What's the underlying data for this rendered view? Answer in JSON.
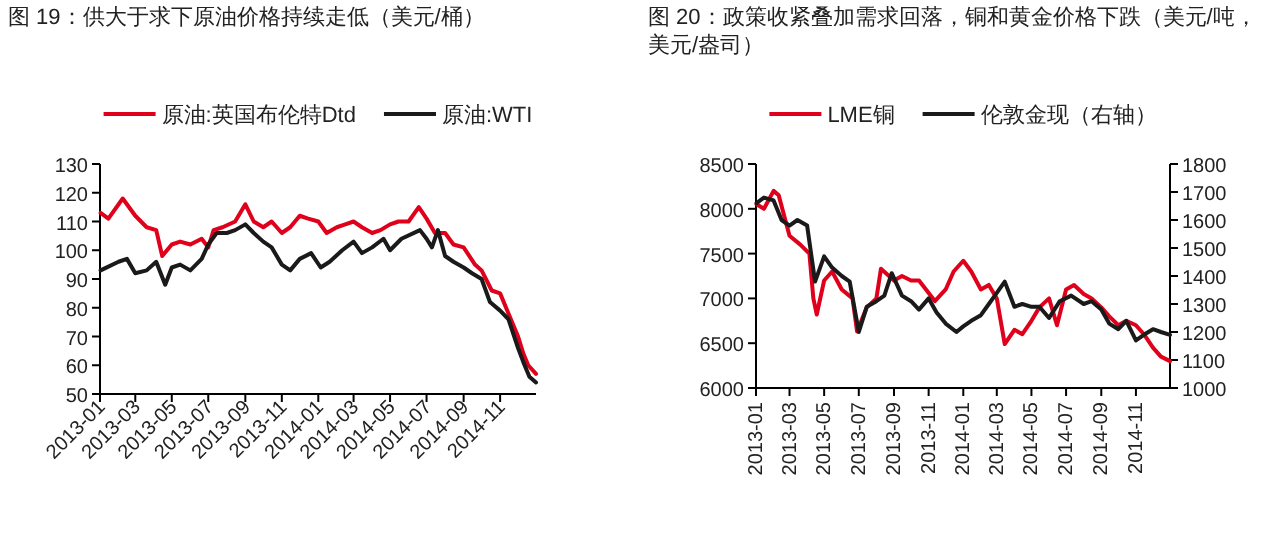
{
  "chart_data": [
    {
      "type": "line",
      "title": "图 19：供大于求下原油价格持续走低（美元/桶）",
      "legend": "top",
      "grid": false,
      "xlim": [
        "2013-01-01",
        "2014-12-31"
      ],
      "xticks": [
        "2013-01",
        "2013-03",
        "2013-05",
        "2013-07",
        "2013-09",
        "2013-11",
        "2014-01",
        "2014-03",
        "2014-05",
        "2014-07",
        "2014-09",
        "2014-11"
      ],
      "ylim": [
        50,
        130
      ],
      "yticks": [
        50,
        60,
        70,
        80,
        90,
        100,
        110,
        120,
        130
      ],
      "series": [
        {
          "name": "原油:英国布伦特Dtd",
          "color": "#e0001b",
          "x": [
            "2013-01-02",
            "2013-01-15",
            "2013-02-08",
            "2013-03-01",
            "2013-03-20",
            "2013-04-05",
            "2013-04-15",
            "2013-05-01",
            "2013-05-15",
            "2013-06-01",
            "2013-06-20",
            "2013-07-01",
            "2013-07-10",
            "2013-07-25",
            "2013-08-15",
            "2013-09-01",
            "2013-09-15",
            "2013-10-01",
            "2013-10-15",
            "2013-11-01",
            "2013-11-15",
            "2013-12-01",
            "2013-12-15",
            "2014-01-01",
            "2014-01-15",
            "2014-02-01",
            "2014-02-15",
            "2014-03-01",
            "2014-03-15",
            "2014-04-01",
            "2014-04-15",
            "2014-05-01",
            "2014-05-15",
            "2014-06-01",
            "2014-06-18",
            "2014-07-01",
            "2014-07-15",
            "2014-08-01",
            "2014-08-15",
            "2014-09-01",
            "2014-09-20",
            "2014-10-01",
            "2014-10-18",
            "2014-11-01",
            "2014-11-15",
            "2014-12-01",
            "2014-12-10",
            "2014-12-18",
            "2014-12-31"
          ],
          "values": [
            113,
            111,
            118,
            112,
            108,
            107,
            98,
            102,
            103,
            102,
            104,
            101,
            107,
            108,
            110,
            116,
            110,
            108,
            110,
            106,
            108,
            112,
            111,
            110,
            106,
            108,
            109,
            110,
            108,
            106,
            107,
            109,
            110,
            110,
            115,
            111,
            106,
            106,
            102,
            101,
            95,
            93,
            86,
            85,
            78,
            70,
            64,
            60,
            57
          ]
        },
        {
          "name": "原油:WTI",
          "color": "#1a1a1a",
          "x": [
            "2013-01-02",
            "2013-02-01",
            "2013-02-15",
            "2013-03-01",
            "2013-03-20",
            "2013-04-05",
            "2013-04-20",
            "2013-05-01",
            "2013-05-15",
            "2013-06-01",
            "2013-06-20",
            "2013-07-01",
            "2013-07-15",
            "2013-08-01",
            "2013-08-15",
            "2013-09-01",
            "2013-09-15",
            "2013-10-01",
            "2013-10-15",
            "2013-11-01",
            "2013-11-15",
            "2013-12-01",
            "2013-12-20",
            "2014-01-05",
            "2014-01-20",
            "2014-02-10",
            "2014-03-01",
            "2014-03-15",
            "2014-04-01",
            "2014-04-20",
            "2014-05-01",
            "2014-05-20",
            "2014-06-20",
            "2014-07-01",
            "2014-07-10",
            "2014-07-20",
            "2014-08-01",
            "2014-08-15",
            "2014-09-01",
            "2014-09-15",
            "2014-10-01",
            "2014-10-15",
            "2014-11-01",
            "2014-11-15",
            "2014-12-01",
            "2014-12-10",
            "2014-12-20",
            "2014-12-31"
          ],
          "values": [
            93,
            96,
            97,
            92,
            93,
            96,
            88,
            94,
            95,
            93,
            97,
            102,
            106,
            106,
            107,
            109,
            106,
            103,
            101,
            95,
            93,
            97,
            99,
            94,
            96,
            100,
            103,
            99,
            101,
            104,
            100,
            104,
            107,
            104,
            101,
            107,
            98,
            96,
            94,
            92,
            90,
            82,
            79,
            76,
            66,
            61,
            56,
            54
          ]
        }
      ]
    },
    {
      "type": "line",
      "title": "图 20：政策收紧叠加需求回落，铜和黄金价格下跌（美元/吨，美元/盎司）",
      "legend": "top",
      "grid": false,
      "xlim": [
        "2013-01-01",
        "2014-12-31"
      ],
      "xticks": [
        "2013-01",
        "2013-03",
        "2013-05",
        "2013-07",
        "2013-09",
        "2013-11",
        "2014-01",
        "2014-03",
        "2014-05",
        "2014-07",
        "2014-09",
        "2014-11"
      ],
      "ylim": [
        6000,
        8500
      ],
      "yticks": [
        6000,
        6500,
        7000,
        7500,
        8000,
        8500
      ],
      "y2lim": [
        1000,
        1800
      ],
      "y2ticks": [
        1000,
        1100,
        1200,
        1300,
        1400,
        1500,
        1600,
        1700,
        1800
      ],
      "series": [
        {
          "name": "LME铜",
          "color": "#e0001b",
          "x": [
            "2013-01-02",
            "2013-01-15",
            "2013-02-01",
            "2013-02-10",
            "2013-03-01",
            "2013-03-20",
            "2013-04-05",
            "2013-04-12",
            "2013-04-18",
            "2013-05-01",
            "2013-05-15",
            "2013-06-01",
            "2013-06-20",
            "2013-06-28",
            "2013-07-15",
            "2013-08-01",
            "2013-08-09",
            "2013-09-01",
            "2013-09-15",
            "2013-10-01",
            "2013-10-15",
            "2013-11-12",
            "2013-12-01",
            "2013-12-15",
            "2014-01-01",
            "2014-01-15",
            "2014-02-01",
            "2014-02-15",
            "2014-03-01",
            "2014-03-15",
            "2014-04-01",
            "2014-04-15",
            "2014-05-01",
            "2014-05-15",
            "2014-06-01",
            "2014-06-15",
            "2014-07-01",
            "2014-07-15",
            "2014-08-01",
            "2014-08-15",
            "2014-09-01",
            "2014-09-15",
            "2014-10-01",
            "2014-10-15",
            "2014-11-01",
            "2014-11-15",
            "2014-12-01",
            "2014-12-15",
            "2014-12-31"
          ],
          "values": [
            8050,
            8000,
            8200,
            8150,
            7700,
            7600,
            7500,
            7000,
            6820,
            7200,
            7300,
            7100,
            7000,
            6630,
            6900,
            7000,
            7330,
            7200,
            7250,
            7200,
            7200,
            6970,
            7100,
            7300,
            7420,
            7300,
            7100,
            7150,
            7000,
            6490,
            6650,
            6600,
            6750,
            6900,
            7000,
            6700,
            7100,
            7150,
            7050,
            7000,
            6900,
            6800,
            6700,
            6750,
            6700,
            6600,
            6450,
            6350,
            6300
          ]
        },
        {
          "name": "伦敦金现（右轴）",
          "color": "#1a1a1a",
          "axis": "y2",
          "x": [
            "2013-01-02",
            "2013-01-15",
            "2013-02-01",
            "2013-02-15",
            "2013-03-01",
            "2013-03-15",
            "2013-04-01",
            "2013-04-15",
            "2013-05-01",
            "2013-05-15",
            "2013-06-01",
            "2013-06-15",
            "2013-07-01",
            "2013-07-15",
            "2013-08-01",
            "2013-08-15",
            "2013-08-28",
            "2013-09-15",
            "2013-10-01",
            "2013-10-15",
            "2013-11-01",
            "2013-11-15",
            "2013-12-01",
            "2013-12-20",
            "2014-01-01",
            "2014-01-15",
            "2014-02-01",
            "2014-02-15",
            "2014-03-01",
            "2014-03-15",
            "2014-04-01",
            "2014-04-15",
            "2014-05-01",
            "2014-05-15",
            "2014-06-01",
            "2014-06-20",
            "2014-07-10",
            "2014-08-01",
            "2014-08-15",
            "2014-09-01",
            "2014-09-15",
            "2014-10-01",
            "2014-10-15",
            "2014-11-01",
            "2014-11-15",
            "2014-12-01",
            "2014-12-15",
            "2014-12-31"
          ],
          "values": [
            1660,
            1680,
            1670,
            1600,
            1580,
            1600,
            1580,
            1380,
            1470,
            1430,
            1400,
            1380,
            1200,
            1290,
            1310,
            1330,
            1410,
            1330,
            1310,
            1280,
            1320,
            1270,
            1230,
            1200,
            1220,
            1240,
            1260,
            1300,
            1340,
            1380,
            1290,
            1300,
            1290,
            1290,
            1250,
            1310,
            1330,
            1300,
            1310,
            1280,
            1230,
            1210,
            1240,
            1170,
            1190,
            1210,
            1200,
            1190
          ]
        }
      ]
    }
  ]
}
